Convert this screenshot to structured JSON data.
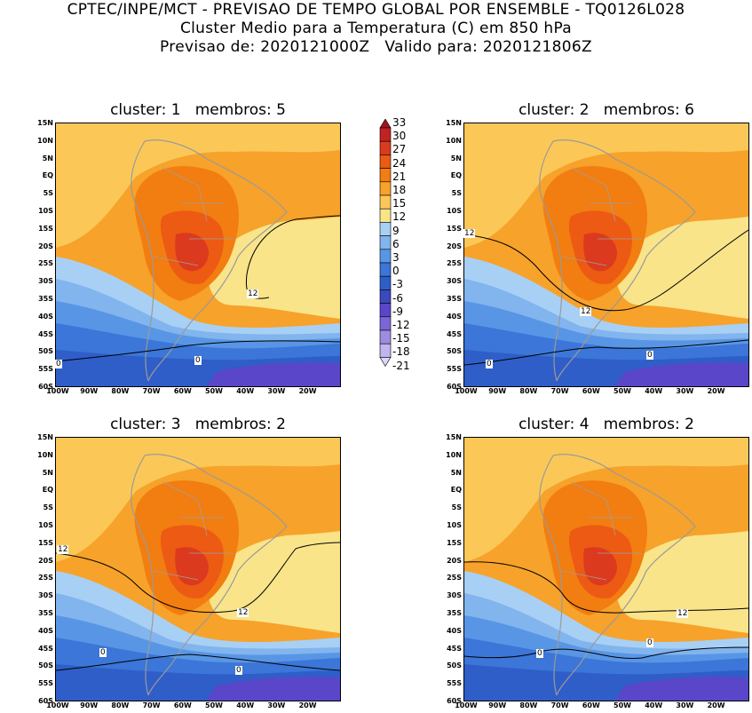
{
  "header": {
    "line1": "CPTEC/INPE/MCT - PREVISAO DE TEMPO GLOBAL POR ENSEMBLE - TQ0126L028",
    "line2": "Cluster Medio para a Temperatura (C) em 850 hPa",
    "line3": "Previsao de: 2020121000Z   Valido para: 2020121806Z"
  },
  "lat_ticks": [
    "15N",
    "10N",
    "5N",
    "EQ",
    "5S",
    "10S",
    "15S",
    "20S",
    "25S",
    "30S",
    "35S",
    "40S",
    "45S",
    "50S",
    "55S",
    "60S"
  ],
  "lon_ticks": [
    "100W",
    "90W",
    "80W",
    "70W",
    "60W",
    "50W",
    "40W",
    "30W",
    "20W"
  ],
  "colorbar": {
    "labels": [
      "33",
      "30",
      "27",
      "24",
      "21",
      "18",
      "15",
      "12",
      "9",
      "6",
      "3",
      "0",
      "-3",
      "-6",
      "-9",
      "-12",
      "-15",
      "-18",
      "-21"
    ],
    "colors": [
      "#a3141c",
      "#c22222",
      "#dc3a1e",
      "#ec5a14",
      "#f27d10",
      "#f7a22a",
      "#fbc858",
      "#f9e48a",
      "#a8d0f5",
      "#82b4ee",
      "#5896e5",
      "#3b76d8",
      "#2f5ec8",
      "#3b48be",
      "#5a46c8",
      "#7a66d6",
      "#9e8ce2",
      "#c2b4ee",
      "#ddd6f6"
    ]
  },
  "panels": [
    {
      "title": "cluster: 1   membros: 5",
      "contour_labels": [
        "12",
        "0",
        "0"
      ]
    },
    {
      "title": "cluster: 2   membros: 6",
      "contour_labels": [
        "12",
        "12",
        "0",
        "0"
      ]
    },
    {
      "title": "cluster: 3   membros: 2",
      "contour_labels": [
        "12",
        "12",
        "0",
        "0"
      ]
    },
    {
      "title": "cluster: 4   membros: 2",
      "contour_labels": [
        "12",
        "0",
        "0"
      ]
    }
  ]
}
